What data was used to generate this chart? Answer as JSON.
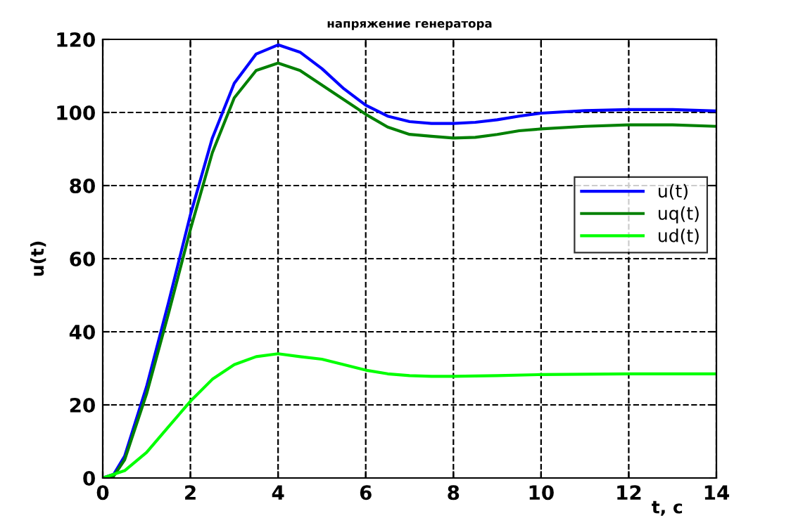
{
  "chart_data": {
    "type": "line",
    "title": "напряжение генератора",
    "xlabel": "t, c",
    "ylabel": "u(t)",
    "xlim": [
      0,
      14
    ],
    "ylim": [
      0,
      120
    ],
    "xticks": [
      0,
      2,
      4,
      6,
      8,
      10,
      12,
      14
    ],
    "yticks": [
      0,
      20,
      40,
      60,
      80,
      100,
      120
    ],
    "grid": true,
    "legend": "right",
    "marker": "none",
    "line_style": "solid",
    "series": [
      {
        "name": "u(t)",
        "color": "#0000ff",
        "x": [
          0,
          0.25,
          0.5,
          1,
          1.5,
          2,
          2.5,
          3,
          3.5,
          4,
          4.5,
          5,
          5.5,
          6,
          6.5,
          7,
          7.5,
          8,
          8.5,
          9,
          9.5,
          10,
          11,
          12,
          13,
          14
        ],
        "values": [
          0,
          1,
          6,
          25,
          48,
          72,
          93,
          108,
          116,
          118.5,
          116.5,
          112,
          106.5,
          102,
          99,
          97.5,
          97,
          97,
          97.3,
          98,
          99,
          99.8,
          100.5,
          100.8,
          100.8,
          100.4
        ]
      },
      {
        "name": "uq(t)",
        "color": "#008000",
        "x": [
          0,
          0.25,
          0.5,
          1,
          1.5,
          2,
          2.5,
          3,
          3.5,
          4,
          4.5,
          5,
          5.5,
          6,
          6.5,
          7,
          7.5,
          8,
          8.5,
          9,
          9.5,
          10,
          11,
          12,
          13,
          14
        ],
        "values": [
          0,
          0.5,
          5,
          23,
          45,
          68,
          89,
          104,
          111.5,
          113.5,
          111.5,
          107.5,
          103.5,
          99.5,
          96,
          94,
          93.5,
          93,
          93.2,
          94,
          95,
          95.5,
          96.2,
          96.6,
          96.6,
          96.2
        ]
      },
      {
        "name": "ud(t)",
        "color": "#00ff00",
        "x": [
          0,
          0.5,
          1,
          1.5,
          2,
          2.5,
          3,
          3.5,
          4,
          4.5,
          5,
          5.5,
          6,
          6.5,
          7,
          7.5,
          8,
          9,
          10,
          12,
          14
        ],
        "values": [
          0,
          2,
          7,
          14,
          21,
          27,
          31,
          33.2,
          34,
          33.2,
          32.5,
          31,
          29.5,
          28.5,
          28,
          27.8,
          27.8,
          28,
          28.3,
          28.5,
          28.5
        ]
      }
    ]
  }
}
